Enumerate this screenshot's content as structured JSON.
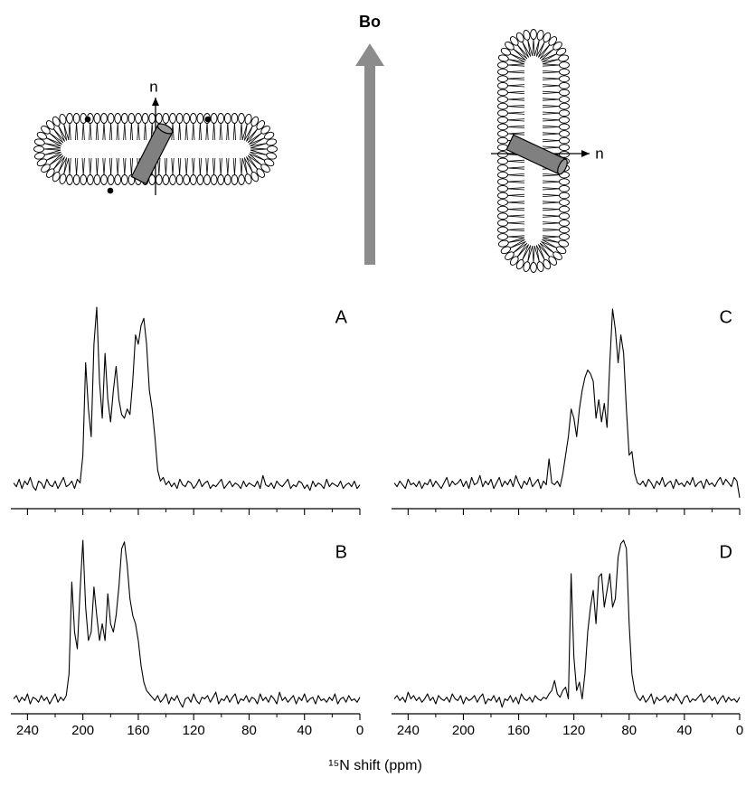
{
  "diagram": {
    "field_label": "Bo",
    "normal_label_left": "n",
    "normal_label_right": "n"
  },
  "xlabel": "¹⁵N shift (ppm)",
  "chart_data": [
    {
      "type": "line",
      "panel_label": "A",
      "show_tick_labels": false,
      "color": "#000000",
      "xlim": [
        252,
        0
      ],
      "ylim": [
        -5,
        100
      ],
      "xticks": [
        240,
        200,
        160,
        120,
        80,
        40,
        0
      ],
      "xminorticks": [
        220,
        180,
        140,
        100,
        60,
        20
      ],
      "x": [
        250,
        248,
        246,
        244,
        242,
        240,
        238,
        236,
        234,
        232,
        230,
        228,
        226,
        224,
        222,
        220,
        218,
        216,
        214,
        212,
        210,
        208,
        206,
        204,
        202,
        200,
        198,
        196,
        194,
        192,
        190,
        188,
        186,
        184,
        182,
        180,
        178,
        176,
        174,
        172,
        170,
        168,
        166,
        164,
        162,
        160,
        158,
        156,
        154,
        152,
        150,
        148,
        146,
        144,
        142,
        140,
        138,
        136,
        134,
        132,
        130,
        128,
        126,
        124,
        122,
        120,
        118,
        116,
        114,
        112,
        110,
        108,
        106,
        104,
        102,
        100,
        98,
        96,
        94,
        92,
        90,
        88,
        86,
        84,
        82,
        80,
        78,
        76,
        74,
        72,
        70,
        68,
        66,
        64,
        62,
        60,
        58,
        56,
        54,
        52,
        50,
        48,
        46,
        44,
        42,
        40,
        38,
        36,
        34,
        32,
        30,
        28,
        26,
        24,
        22,
        20,
        18,
        16,
        14,
        12,
        10,
        8,
        6,
        4,
        2,
        0
      ],
      "values": [
        5,
        3,
        7,
        2,
        6,
        4,
        8,
        3,
        1,
        6,
        5,
        2,
        7,
        4,
        3,
        6,
        2,
        5,
        8,
        3,
        4,
        6,
        2,
        7,
        5,
        20,
        70,
        45,
        30,
        80,
        100,
        60,
        40,
        75,
        50,
        38,
        55,
        68,
        50,
        42,
        40,
        45,
        42,
        60,
        85,
        80,
        90,
        94,
        80,
        55,
        45,
        30,
        12,
        6,
        8,
        4,
        6,
        3,
        5,
        2,
        7,
        4,
        3,
        6,
        5,
        2,
        4,
        7,
        3,
        5,
        6,
        2,
        4,
        3,
        5,
        7,
        2,
        4,
        6,
        3,
        5,
        4,
        2,
        6,
        3,
        5,
        4,
        3,
        6,
        2,
        9,
        4,
        3,
        5,
        2,
        6,
        4,
        3,
        5,
        7,
        2,
        4,
        3,
        6,
        5,
        2,
        4,
        1,
        6,
        3,
        5,
        4,
        2,
        7,
        3,
        5,
        4,
        3,
        6,
        2,
        4,
        5,
        3,
        6,
        2,
        4
      ]
    },
    {
      "type": "line",
      "panel_label": "B",
      "show_tick_labels": true,
      "color": "#000000",
      "xlim": [
        252,
        0
      ],
      "ylim": [
        -5,
        100
      ],
      "xticks": [
        240,
        200,
        160,
        120,
        80,
        40,
        0
      ],
      "xminorticks": [
        220,
        180,
        140,
        100,
        60,
        20
      ],
      "x": [
        250,
        248,
        246,
        244,
        242,
        240,
        238,
        236,
        234,
        232,
        230,
        228,
        226,
        224,
        222,
        220,
        218,
        216,
        214,
        212,
        210,
        208,
        206,
        204,
        202,
        200,
        198,
        196,
        194,
        192,
        190,
        188,
        186,
        184,
        182,
        180,
        178,
        176,
        174,
        172,
        170,
        168,
        166,
        164,
        162,
        160,
        158,
        156,
        154,
        152,
        150,
        148,
        146,
        144,
        142,
        140,
        138,
        136,
        134,
        132,
        130,
        128,
        126,
        124,
        122,
        120,
        118,
        116,
        114,
        112,
        110,
        108,
        106,
        104,
        102,
        100,
        98,
        96,
        94,
        92,
        90,
        88,
        86,
        84,
        82,
        80,
        78,
        76,
        74,
        72,
        70,
        68,
        66,
        64,
        62,
        60,
        58,
        56,
        54,
        52,
        50,
        48,
        46,
        44,
        42,
        40,
        38,
        36,
        34,
        32,
        30,
        28,
        26,
        24,
        22,
        20,
        18,
        16,
        14,
        12,
        10,
        8,
        6,
        4,
        2,
        0
      ],
      "values": [
        5,
        7,
        3,
        6,
        4,
        8,
        2,
        6,
        5,
        3,
        7,
        4,
        6,
        2,
        5,
        8,
        3,
        6,
        4,
        7,
        20,
        75,
        45,
        35,
        70,
        100,
        60,
        40,
        45,
        72,
        55,
        40,
        50,
        40,
        68,
        50,
        45,
        55,
        72,
        95,
        99,
        85,
        65,
        55,
        50,
        40,
        25,
        15,
        10,
        8,
        6,
        4,
        7,
        3,
        5,
        8,
        2,
        6,
        4,
        7,
        3,
        0,
        5,
        6,
        3,
        8,
        4,
        2,
        6,
        5,
        7,
        3,
        6,
        9,
        2,
        5,
        4,
        7,
        3,
        6,
        8,
        2,
        5,
        4,
        7,
        3,
        6,
        5,
        2,
        8,
        4,
        6,
        3,
        7,
        5,
        2,
        9,
        4,
        6,
        3,
        5,
        7,
        2,
        6,
        4,
        8,
        3,
        5,
        6,
        2,
        7,
        4,
        5,
        3,
        6,
        4,
        8,
        2,
        5,
        6,
        3,
        7,
        4,
        5,
        3,
        6
      ]
    },
    {
      "type": "line",
      "panel_label": "C",
      "show_tick_labels": false,
      "color": "#000000",
      "xlim": [
        252,
        0
      ],
      "ylim": [
        -5,
        100
      ],
      "xticks": [
        240,
        200,
        160,
        120,
        80,
        40,
        0
      ],
      "xminorticks": [
        220,
        180,
        140,
        100,
        60,
        20
      ],
      "x": [
        250,
        248,
        246,
        244,
        242,
        240,
        238,
        236,
        234,
        232,
        230,
        228,
        226,
        224,
        222,
        220,
        218,
        216,
        214,
        212,
        210,
        208,
        206,
        204,
        202,
        200,
        198,
        196,
        194,
        192,
        190,
        188,
        186,
        184,
        182,
        180,
        178,
        176,
        174,
        172,
        170,
        168,
        166,
        164,
        162,
        160,
        158,
        156,
        154,
        152,
        150,
        148,
        146,
        144,
        142,
        140,
        138,
        136,
        134,
        132,
        130,
        128,
        126,
        124,
        122,
        120,
        118,
        116,
        114,
        112,
        110,
        108,
        106,
        104,
        102,
        100,
        98,
        96,
        94,
        92,
        90,
        88,
        86,
        84,
        82,
        80,
        78,
        76,
        74,
        72,
        70,
        68,
        66,
        64,
        62,
        60,
        58,
        56,
        54,
        52,
        50,
        48,
        46,
        44,
        42,
        40,
        38,
        36,
        34,
        32,
        30,
        28,
        26,
        24,
        22,
        20,
        18,
        16,
        14,
        12,
        10,
        8,
        6,
        4,
        2,
        0
      ],
      "values": [
        5,
        3,
        6,
        4,
        2,
        7,
        4,
        5,
        3,
        6,
        2,
        5,
        4,
        7,
        3,
        6,
        4,
        2,
        5,
        8,
        3,
        6,
        4,
        5,
        7,
        3,
        6,
        2,
        8,
        4,
        5,
        9,
        3,
        6,
        4,
        7,
        2,
        5,
        8,
        3,
        6,
        4,
        7,
        3,
        9,
        5,
        2,
        6,
        4,
        8,
        3,
        5,
        7,
        2,
        6,
        4,
        18,
        5,
        4,
        6,
        3,
        10,
        20,
        30,
        45,
        40,
        30,
        45,
        55,
        62,
        66,
        64,
        60,
        40,
        50,
        38,
        48,
        35,
        70,
        99,
        88,
        70,
        85,
        75,
        45,
        20,
        22,
        10,
        5,
        4,
        6,
        3,
        7,
        5,
        2,
        6,
        4,
        8,
        3,
        5,
        6,
        2,
        7,
        4,
        5,
        3,
        6,
        4,
        8,
        3,
        5,
        6,
        2,
        7,
        4,
        5,
        3,
        6,
        8,
        4,
        7,
        5,
        3,
        8,
        6,
        -3
      ]
    },
    {
      "type": "line",
      "panel_label": "D",
      "show_tick_labels": true,
      "color": "#000000",
      "xlim": [
        252,
        0
      ],
      "ylim": [
        -5,
        100
      ],
      "xticks": [
        240,
        200,
        160,
        120,
        80,
        40,
        0
      ],
      "xminorticks": [
        220,
        180,
        140,
        100,
        60,
        20
      ],
      "x": [
        250,
        248,
        246,
        244,
        242,
        240,
        238,
        236,
        234,
        232,
        230,
        228,
        226,
        224,
        222,
        220,
        218,
        216,
        214,
        212,
        210,
        208,
        206,
        204,
        202,
        200,
        198,
        196,
        194,
        192,
        190,
        188,
        186,
        184,
        182,
        180,
        178,
        176,
        174,
        172,
        170,
        168,
        166,
        164,
        162,
        160,
        158,
        156,
        154,
        152,
        150,
        148,
        146,
        144,
        142,
        140,
        138,
        136,
        134,
        132,
        130,
        128,
        126,
        124,
        122,
        120,
        118,
        116,
        114,
        112,
        110,
        108,
        106,
        104,
        102,
        100,
        98,
        96,
        94,
        92,
        90,
        88,
        86,
        84,
        82,
        80,
        78,
        76,
        74,
        72,
        70,
        68,
        66,
        64,
        62,
        60,
        58,
        56,
        54,
        52,
        50,
        48,
        46,
        44,
        42,
        40,
        38,
        36,
        34,
        32,
        30,
        28,
        26,
        24,
        22,
        20,
        18,
        16,
        14,
        12,
        10,
        8,
        6,
        4,
        2,
        0
      ],
      "values": [
        5,
        7,
        4,
        6,
        3,
        9,
        5,
        7,
        4,
        6,
        3,
        5,
        8,
        4,
        6,
        2,
        7,
        5,
        4,
        6,
        3,
        8,
        5,
        4,
        7,
        2,
        6,
        4,
        5,
        7,
        3,
        6,
        8,
        2,
        5,
        4,
        7,
        3,
        6,
        0,
        5,
        4,
        7,
        3,
        6,
        2,
        8,
        5,
        4,
        6,
        3,
        7,
        5,
        4,
        6,
        5,
        8,
        10,
        16,
        8,
        6,
        10,
        12,
        5,
        80,
        30,
        10,
        15,
        5,
        20,
        45,
        60,
        70,
        50,
        78,
        80,
        60,
        70,
        80,
        60,
        65,
        90,
        98,
        100,
        95,
        50,
        20,
        10,
        6,
        4,
        7,
        3,
        5,
        8,
        2,
        6,
        4,
        5,
        7,
        3,
        6,
        4,
        8,
        5,
        2,
        6,
        7,
        3,
        5,
        4,
        6,
        8,
        3,
        5,
        7,
        4,
        6,
        2,
        5,
        7,
        3,
        6,
        4,
        5,
        3,
        6
      ]
    }
  ]
}
